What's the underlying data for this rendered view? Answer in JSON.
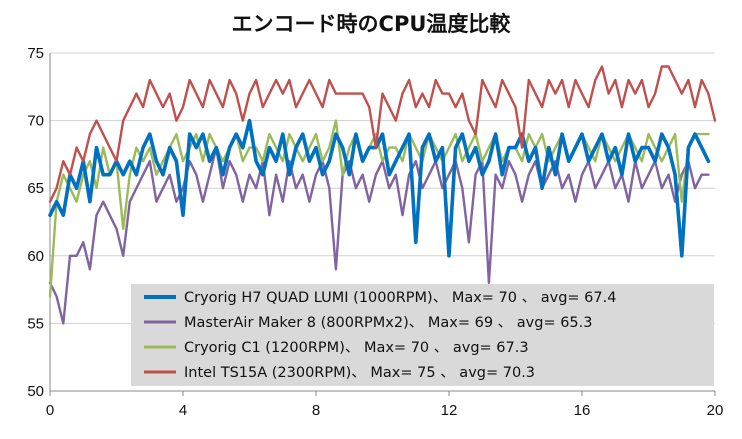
{
  "chart_data": {
    "type": "line",
    "title": "エンコード時のCPU温度比較",
    "xlabel": "",
    "ylabel": "",
    "xlim": [
      0,
      20
    ],
    "ylim": [
      50,
      75
    ],
    "x_ticks": [
      "0",
      "4",
      "8",
      "12",
      "16",
      "20"
    ],
    "y_ticks": [
      "50",
      "55",
      "60",
      "65",
      "70",
      "75"
    ],
    "grid": "horizontal",
    "legend_position": "bottom-right",
    "colors": {
      "axis": "#888888",
      "grid": "#d0d0d0",
      "legend_bg": "#d9d9d9"
    },
    "series": [
      {
        "name": "Cryorig H7 QUAD LUMI (1000RPM)、 Max= 70 、 avg= 67.4",
        "color": "#0070c0",
        "x": [
          0,
          0.2,
          0.4,
          0.6,
          0.8,
          1.0,
          1.2,
          1.4,
          1.6,
          1.8,
          2.0,
          2.2,
          2.4,
          2.6,
          2.8,
          3.0,
          3.2,
          3.4,
          3.6,
          3.8,
          4.0,
          4.2,
          4.4,
          4.6,
          4.8,
          5.0,
          5.2,
          5.4,
          5.6,
          5.8,
          6.0,
          6.2,
          6.4,
          6.6,
          6.8,
          7.0,
          7.2,
          7.4,
          7.6,
          7.8,
          8.0,
          8.2,
          8.4,
          8.6,
          8.8,
          9.0,
          9.2,
          9.4,
          9.6,
          9.8,
          10.0,
          10.2,
          10.4,
          10.6,
          10.8,
          11.0,
          11.2,
          11.4,
          11.6,
          11.8,
          12.0,
          12.2,
          12.4,
          12.6,
          12.8,
          13.0,
          13.2,
          13.4,
          13.6,
          13.8,
          14.0,
          14.2,
          14.4,
          14.6,
          14.8,
          15.0,
          15.2,
          15.4,
          15.6,
          15.8,
          16.0,
          16.2,
          16.4,
          16.6,
          16.8,
          17.0,
          17.2,
          17.4,
          17.6,
          17.8,
          18.0,
          18.2,
          18.4,
          18.6,
          18.8,
          19.0,
          19.2,
          19.4,
          19.6,
          19.8
        ],
        "y": [
          63,
          64,
          63,
          66,
          65,
          67,
          64,
          68,
          66,
          66,
          67,
          66,
          67,
          66,
          68,
          69,
          67,
          66,
          68,
          67,
          63,
          69,
          68,
          69,
          67,
          68,
          66,
          68,
          69,
          68,
          70,
          67,
          66,
          68,
          67,
          69,
          66,
          68,
          69,
          67,
          68,
          66,
          67,
          69,
          68,
          66,
          69,
          67,
          68,
          68,
          69,
          66,
          67,
          68,
          69,
          61,
          68,
          69,
          67,
          68,
          60,
          68,
          69,
          67,
          68,
          66,
          67,
          69,
          66,
          68,
          68,
          69,
          67,
          68,
          65,
          68,
          66,
          69,
          67,
          68,
          69,
          67,
          68,
          69,
          67,
          68,
          66,
          69,
          67,
          68,
          68,
          67,
          69,
          68,
          66,
          60,
          68,
          69,
          68,
          67
        ]
      },
      {
        "name": "MasterAir Maker 8 (800RPMx2)、 Max= 69 、 avg= 65.3",
        "color": "#8064a2",
        "x": [
          0,
          0.2,
          0.4,
          0.6,
          0.8,
          1.0,
          1.2,
          1.4,
          1.6,
          1.8,
          2.0,
          2.2,
          2.4,
          2.6,
          2.8,
          3.0,
          3.2,
          3.4,
          3.6,
          3.8,
          4.0,
          4.2,
          4.4,
          4.6,
          4.8,
          5.0,
          5.2,
          5.4,
          5.6,
          5.8,
          6.0,
          6.2,
          6.4,
          6.6,
          6.8,
          7.0,
          7.2,
          7.4,
          7.6,
          7.8,
          8.0,
          8.2,
          8.4,
          8.6,
          8.8,
          9.0,
          9.2,
          9.4,
          9.6,
          9.8,
          10.0,
          10.2,
          10.4,
          10.6,
          10.8,
          11.0,
          11.2,
          11.4,
          11.6,
          11.8,
          12.0,
          12.2,
          12.4,
          12.6,
          12.8,
          13.0,
          13.2,
          13.4,
          13.6,
          13.8,
          14.0,
          14.2,
          14.4,
          14.6,
          14.8,
          15.0,
          15.2,
          15.4,
          15.6,
          15.8,
          16.0,
          16.2,
          16.4,
          16.6,
          16.8,
          17.0,
          17.2,
          17.4,
          17.6,
          17.8,
          18.0,
          18.2,
          18.4,
          18.6,
          18.8,
          19.0,
          19.2,
          19.4,
          19.6,
          19.8
        ],
        "y": [
          58,
          57,
          55,
          60,
          60,
          61,
          59,
          63,
          64,
          63,
          62,
          60,
          64,
          65,
          66,
          67,
          64,
          65,
          66,
          64,
          65,
          67,
          66,
          64,
          66,
          68,
          65,
          67,
          66,
          64,
          66,
          65,
          67,
          63,
          66,
          64,
          67,
          65,
          66,
          64,
          66,
          67,
          65,
          59,
          66,
          67,
          65,
          66,
          64,
          66,
          67,
          65,
          66,
          63,
          66,
          67,
          65,
          66,
          67,
          65,
          66,
          67,
          65,
          61,
          66,
          67,
          58,
          66,
          65,
          67,
          66,
          64,
          66,
          67,
          65,
          66,
          67,
          65,
          66,
          64,
          66,
          67,
          65,
          66,
          67,
          65,
          66,
          64,
          67,
          65,
          66,
          67,
          65,
          66,
          64,
          66,
          67,
          65,
          66,
          66
        ]
      },
      {
        "name": "Cryorig C1 (1200RPM)、 Max= 70 、 avg= 67.3",
        "color": "#9bbb59",
        "x": [
          0,
          0.2,
          0.4,
          0.6,
          0.8,
          1.0,
          1.2,
          1.4,
          1.6,
          1.8,
          2.0,
          2.2,
          2.4,
          2.6,
          2.8,
          3.0,
          3.2,
          3.4,
          3.6,
          3.8,
          4.0,
          4.2,
          4.4,
          4.6,
          4.8,
          5.0,
          5.2,
          5.4,
          5.6,
          5.8,
          6.0,
          6.2,
          6.4,
          6.6,
          6.8,
          7.0,
          7.2,
          7.4,
          7.6,
          7.8,
          8.0,
          8.2,
          8.4,
          8.6,
          8.8,
          9.0,
          9.2,
          9.4,
          9.6,
          9.8,
          10.0,
          10.2,
          10.4,
          10.6,
          10.8,
          11.0,
          11.2,
          11.4,
          11.6,
          11.8,
          12.0,
          12.2,
          12.4,
          12.6,
          12.8,
          13.0,
          13.2,
          13.4,
          13.6,
          13.8,
          14.0,
          14.2,
          14.4,
          14.6,
          14.8,
          15.0,
          15.2,
          15.4,
          15.6,
          15.8,
          16.0,
          16.2,
          16.4,
          16.6,
          16.8,
          17.0,
          17.2,
          17.4,
          17.6,
          17.8,
          18.0,
          18.2,
          18.4,
          18.6,
          18.8,
          19.0,
          19.2,
          19.4,
          19.6,
          19.8
        ],
        "y": [
          57,
          64,
          66,
          65,
          64,
          66,
          67,
          65,
          68,
          66,
          67,
          62,
          66,
          68,
          67,
          68,
          66,
          67,
          68,
          69,
          67,
          68,
          69,
          67,
          69,
          68,
          67,
          68,
          69,
          67,
          68,
          68,
          67,
          69,
          68,
          67,
          69,
          68,
          67,
          68,
          69,
          67,
          68,
          70,
          66,
          68,
          69,
          67,
          68,
          69,
          67,
          68,
          68,
          67,
          69,
          68,
          67,
          69,
          68,
          67,
          68,
          69,
          67,
          68,
          69,
          67,
          68,
          69,
          67,
          68,
          68,
          67,
          69,
          68,
          69,
          67,
          68,
          69,
          67,
          68,
          69,
          68,
          67,
          69,
          68,
          67,
          68,
          69,
          68,
          67,
          69,
          68,
          67,
          68,
          69,
          64,
          68,
          69,
          69,
          69
        ]
      },
      {
        "name": "Intel TS15A (2300RPM)、 Max= 75 、 avg= 70.3",
        "color": "#c0504d",
        "x": [
          0,
          0.2,
          0.4,
          0.6,
          0.8,
          1.0,
          1.2,
          1.4,
          1.6,
          1.8,
          2.0,
          2.2,
          2.4,
          2.6,
          2.8,
          3.0,
          3.2,
          3.4,
          3.6,
          3.8,
          4.0,
          4.2,
          4.4,
          4.6,
          4.8,
          5.0,
          5.2,
          5.4,
          5.6,
          5.8,
          6.0,
          6.2,
          6.4,
          6.6,
          6.8,
          7.0,
          7.2,
          7.4,
          7.6,
          7.8,
          8.0,
          8.2,
          8.4,
          8.6,
          8.8,
          9.0,
          9.2,
          9.4,
          9.6,
          9.8,
          10.0,
          10.2,
          10.4,
          10.6,
          10.8,
          11.0,
          11.2,
          11.4,
          11.6,
          11.8,
          12.0,
          12.2,
          12.4,
          12.6,
          12.8,
          13.0,
          13.2,
          13.4,
          13.6,
          13.8,
          14.0,
          14.2,
          14.4,
          14.6,
          14.8,
          15.0,
          15.2,
          15.4,
          15.6,
          15.8,
          16.0,
          16.2,
          16.4,
          16.6,
          16.8,
          17.0,
          17.2,
          17.4,
          17.6,
          17.8,
          18.0,
          18.2,
          18.4,
          18.6,
          18.8,
          19.0,
          19.2,
          19.4,
          19.6,
          19.8,
          20.0
        ],
        "y": [
          64,
          65,
          67,
          66,
          68,
          67,
          69,
          70,
          69,
          68,
          67,
          70,
          71,
          72,
          71,
          73,
          72,
          71,
          72,
          70,
          71,
          73,
          72,
          71,
          73,
          72,
          71,
          73,
          72,
          70,
          72,
          73,
          71,
          72,
          73,
          72,
          73,
          71,
          72,
          73,
          72,
          71,
          73,
          72,
          72,
          72,
          72,
          72,
          71,
          68,
          72,
          71,
          70,
          72,
          73,
          71,
          72,
          71,
          73,
          72,
          72,
          71,
          72,
          70,
          69,
          73,
          72,
          71,
          73,
          72,
          71,
          68,
          73,
          72,
          71,
          73,
          72,
          73,
          71,
          73,
          72,
          71,
          73,
          74,
          72,
          73,
          71,
          73,
          72,
          73,
          71,
          72,
          74,
          74,
          73,
          72,
          73,
          71,
          73,
          72,
          70
        ]
      }
    ]
  }
}
